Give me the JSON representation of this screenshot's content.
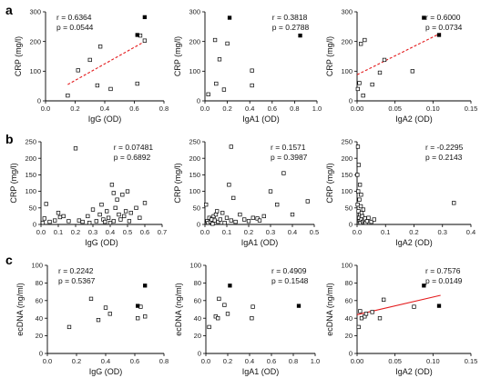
{
  "panels": [
    {
      "letter": "a"
    },
    {
      "letter": "b"
    },
    {
      "letter": "c"
    }
  ],
  "colors": {
    "fit_dashed": "#e41a1c",
    "fit_solid": "#e41a1c",
    "axis": "#000000"
  },
  "chart_data": [
    {
      "type": "scatter",
      "xlabel": "IgG (OD)",
      "ylabel": "CRP (mg/l)",
      "xlim": [
        0.0,
        0.8
      ],
      "ylim": [
        0,
        300
      ],
      "xticks": [
        "0.0",
        "0.2",
        "0.4",
        "0.6",
        "0.8"
      ],
      "xtick_values": [
        0,
        0.2,
        0.4,
        0.6,
        0.8
      ],
      "yticks": [
        "0",
        "100",
        "200",
        "300"
      ],
      "ytick_values": [
        0,
        100,
        200,
        300
      ],
      "stat_r": "r = 0.6364",
      "stat_p": "p = 0.0544",
      "stat_align": "left",
      "fit": {
        "style": "dashed",
        "x": [
          0.15,
          0.67
        ],
        "y": [
          55,
          200
        ]
      },
      "open_points": {
        "x": [
          0.15,
          0.22,
          0.3,
          0.35,
          0.37,
          0.44,
          0.62,
          0.64,
          0.67
        ],
        "y": [
          18,
          103,
          138,
          52,
          183,
          40,
          58,
          220,
          203
        ]
      },
      "filled_points": {
        "x": [
          0.62,
          0.67
        ],
        "y": [
          222,
          282
        ]
      }
    },
    {
      "type": "scatter",
      "xlabel": "IgA1 (OD)",
      "ylabel": "CRP (mg/l)",
      "xlim": [
        0.0,
        1.0
      ],
      "ylim": [
        0,
        300
      ],
      "xticks": [
        "0.0",
        "0.2",
        "0.4",
        "0.6",
        "0.8",
        "1.0"
      ],
      "xtick_values": [
        0,
        0.2,
        0.4,
        0.6,
        0.8,
        1.0
      ],
      "yticks": [
        "0",
        "100",
        "200",
        "300"
      ],
      "ytick_values": [
        0,
        100,
        200,
        300
      ],
      "stat_r": "r = 0.3818",
      "stat_p": "p = 0.2788",
      "stat_align": "right",
      "open_points": {
        "x": [
          0.03,
          0.09,
          0.1,
          0.13,
          0.17,
          0.2,
          0.42,
          0.42
        ],
        "y": [
          22,
          205,
          58,
          140,
          38,
          193,
          102,
          52
        ]
      },
      "filled_points": {
        "x": [
          0.22,
          0.85
        ],
        "y": [
          280,
          220
        ]
      }
    },
    {
      "type": "scatter",
      "xlabel": "IgA2 (OD)",
      "ylabel": "CRP (mg/l)",
      "xlim": [
        0.0,
        0.15
      ],
      "ylim": [
        0,
        300
      ],
      "xticks": [
        "0.00",
        "0.05",
        "0.10",
        "0.15"
      ],
      "xtick_values": [
        0,
        0.05,
        0.1,
        0.15
      ],
      "yticks": [
        "0",
        "100",
        "200",
        "300"
      ],
      "ytick_values": [
        0,
        100,
        200,
        300
      ],
      "stat_r": "r = 0.6000",
      "stat_p": "p = 0.0734",
      "stat_align": "right",
      "fit": {
        "style": "dashed",
        "x": [
          0.0,
          0.11
        ],
        "y": [
          88,
          228
        ]
      },
      "open_points": {
        "x": [
          0.001,
          0.003,
          0.005,
          0.008,
          0.01,
          0.02,
          0.03,
          0.036,
          0.073
        ],
        "y": [
          40,
          60,
          192,
          18,
          205,
          55,
          95,
          138,
          100
        ]
      },
      "filled_points": {
        "x": [
          0.088,
          0.108
        ],
        "y": [
          280,
          222
        ]
      }
    },
    {
      "type": "scatter",
      "xlabel": "IgG (OD)",
      "ylabel": "CRP (mg/l)",
      "xlim": [
        0.0,
        0.7
      ],
      "ylim": [
        0,
        250
      ],
      "xticks": [
        "0.0",
        "0.1",
        "0.2",
        "0.3",
        "0.4",
        "0.5",
        "0.6",
        "0.7"
      ],
      "xtick_values": [
        0,
        0.1,
        0.2,
        0.3,
        0.4,
        0.5,
        0.6,
        0.7
      ],
      "yticks": [
        "0",
        "50",
        "100",
        "150",
        "200",
        "250"
      ],
      "ytick_values": [
        0,
        50,
        100,
        150,
        200,
        250
      ],
      "stat_r": "r = 0.07481",
      "stat_p": "p = 0.6892",
      "stat_align": "right",
      "open_points": {
        "x": [
          0.01,
          0.02,
          0.03,
          0.05,
          0.08,
          0.1,
          0.11,
          0.13,
          0.16,
          0.2,
          0.22,
          0.24,
          0.27,
          0.28,
          0.3,
          0.32,
          0.34,
          0.35,
          0.36,
          0.37,
          0.38,
          0.39,
          0.4,
          0.41,
          0.42,
          0.42,
          0.43,
          0.44,
          0.45,
          0.46,
          0.47,
          0.48,
          0.49,
          0.5,
          0.51,
          0.52,
          0.55,
          0.57,
          0.6
        ],
        "y": [
          5,
          18,
          62,
          8,
          12,
          35,
          22,
          25,
          10,
          230,
          12,
          8,
          25,
          5,
          45,
          10,
          30,
          60,
          15,
          8,
          40,
          20,
          5,
          120,
          95,
          10,
          50,
          75,
          30,
          15,
          90,
          25,
          40,
          100,
          10,
          35,
          50,
          20,
          65
        ]
      },
      "filled_points": {
        "x": [],
        "y": []
      }
    },
    {
      "type": "scatter",
      "xlabel": "IgA1 (OD)",
      "ylabel": "CRP (mg/l)",
      "xlim": [
        0.0,
        0.5
      ],
      "ylim": [
        0,
        250
      ],
      "xticks": [
        "0.0",
        "0.1",
        "0.2",
        "0.3",
        "0.4",
        "0.5"
      ],
      "xtick_values": [
        0,
        0.1,
        0.2,
        0.3,
        0.4,
        0.5
      ],
      "yticks": [
        "0",
        "50",
        "100",
        "150",
        "200",
        "250"
      ],
      "ytick_values": [
        0,
        50,
        100,
        150,
        200,
        250
      ],
      "stat_r": "r = 0.1571",
      "stat_p": "p = 0.3987",
      "stat_align": "right",
      "open_points": {
        "x": [
          0.005,
          0.01,
          0.015,
          0.02,
          0.025,
          0.03,
          0.035,
          0.04,
          0.045,
          0.05,
          0.055,
          0.06,
          0.07,
          0.08,
          0.09,
          0.1,
          0.11,
          0.12,
          0.12,
          0.13,
          0.14,
          0.16,
          0.18,
          0.2,
          0.22,
          0.24,
          0.25,
          0.27,
          0.3,
          0.33,
          0.36,
          0.4,
          0.47
        ],
        "y": [
          60,
          10,
          5,
          20,
          8,
          15,
          2,
          25,
          12,
          30,
          40,
          8,
          15,
          35,
          5,
          20,
          120,
          235,
          12,
          80,
          8,
          30,
          15,
          10,
          20,
          18,
          12,
          25,
          100,
          60,
          155,
          30,
          70
        ]
      },
      "filled_points": {
        "x": [],
        "y": []
      }
    },
    {
      "type": "scatter",
      "xlabel": "IgA2 (OD)",
      "ylabel": "CRP (mg/l)",
      "xlim": [
        0.0,
        0.4
      ],
      "ylim": [
        0,
        250
      ],
      "xticks": [
        "0.0",
        "0.1",
        "0.2",
        "0.3",
        "0.4"
      ],
      "xtick_values": [
        0,
        0.1,
        0.2,
        0.3,
        0.4
      ],
      "yticks": [
        "0",
        "50",
        "100",
        "150",
        "200",
        "250"
      ],
      "ytick_values": [
        0,
        50,
        100,
        150,
        200,
        250
      ],
      "stat_r": "r = -0.2295",
      "stat_p": "p = 0.2143",
      "stat_align": "right",
      "open_points": {
        "x": [
          0.001,
          0.002,
          0.003,
          0.004,
          0.005,
          0.006,
          0.007,
          0.008,
          0.009,
          0.01,
          0.011,
          0.012,
          0.013,
          0.014,
          0.015,
          0.016,
          0.018,
          0.02,
          0.022,
          0.025,
          0.028,
          0.03,
          0.035,
          0.04,
          0.05,
          0.06,
          0.34
        ],
        "y": [
          150,
          60,
          235,
          100,
          40,
          180,
          20,
          75,
          10,
          120,
          30,
          5,
          55,
          90,
          15,
          35,
          25,
          8,
          45,
          12,
          18,
          5,
          10,
          20,
          8,
          15,
          65
        ]
      },
      "filled_points": {
        "x": [],
        "y": []
      }
    },
    {
      "type": "scatter",
      "xlabel": "IgG (OD)",
      "ylabel": "ecDNA (ng/ml)",
      "xlim": [
        0.0,
        0.8
      ],
      "ylim": [
        0,
        100
      ],
      "xticks": [
        "0.0",
        "0.2",
        "0.4",
        "0.6",
        "0.8"
      ],
      "xtick_values": [
        0,
        0.2,
        0.4,
        0.6,
        0.8
      ],
      "yticks": [
        "0",
        "20",
        "40",
        "60",
        "80",
        "100"
      ],
      "ytick_values": [
        0,
        20,
        40,
        60,
        80,
        100
      ],
      "stat_r": "r = 0.2242",
      "stat_p": "p = 0.5367",
      "stat_align": "left",
      "open_points": {
        "x": [
          0.15,
          0.3,
          0.35,
          0.4,
          0.43,
          0.62,
          0.64,
          0.67
        ],
        "y": [
          30,
          62,
          38,
          52,
          45,
          40,
          53,
          42
        ]
      },
      "filled_points": {
        "x": [
          0.62,
          0.67
        ],
        "y": [
          54,
          77
        ]
      }
    },
    {
      "type": "scatter",
      "xlabel": "IgA1 (OD)",
      "ylabel": "ecDNA (ng/ml)",
      "xlim": [
        0.0,
        1.0
      ],
      "ylim": [
        0,
        100
      ],
      "xticks": [
        "0.0",
        "0.2",
        "0.4",
        "0.6",
        "0.8",
        "1.0"
      ],
      "xtick_values": [
        0,
        0.2,
        0.4,
        0.6,
        0.8,
        1.0
      ],
      "yticks": [
        "0",
        "20",
        "40",
        "60",
        "80",
        "100"
      ],
      "ytick_values": [
        0,
        20,
        40,
        60,
        80,
        100
      ],
      "stat_r": "r = 0.4909",
      "stat_p": "p = 0.1548",
      "stat_align": "right",
      "open_points": {
        "x": [
          0.03,
          0.09,
          0.11,
          0.12,
          0.17,
          0.2,
          0.42,
          0.43
        ],
        "y": [
          30,
          42,
          40,
          62,
          55,
          45,
          40,
          53
        ]
      },
      "filled_points": {
        "x": [
          0.22,
          0.85
        ],
        "y": [
          77,
          54
        ]
      }
    },
    {
      "type": "scatter",
      "xlabel": "IgA2 (OD)",
      "ylabel": "ecDNA (ng/ml)",
      "xlim": [
        0.0,
        0.15
      ],
      "ylim": [
        0,
        100
      ],
      "xticks": [
        "0.00",
        "0.05",
        "0.10",
        "0.15"
      ],
      "xtick_values": [
        0,
        0.05,
        0.1,
        0.15
      ],
      "yticks": [
        "0",
        "20",
        "40",
        "60",
        "80",
        "100"
      ],
      "ytick_values": [
        0,
        20,
        40,
        60,
        80,
        100
      ],
      "stat_r": "r = 0.7576",
      "stat_p": "p = 0.0149",
      "stat_align": "right",
      "fit": {
        "style": "solid",
        "x": [
          0.0,
          0.11
        ],
        "y": [
          44,
          66
        ]
      },
      "open_points": {
        "x": [
          0.002,
          0.004,
          0.006,
          0.01,
          0.012,
          0.02,
          0.03,
          0.035,
          0.075
        ],
        "y": [
          30,
          48,
          40,
          42,
          45,
          47,
          40,
          61,
          53
        ]
      },
      "filled_points": {
        "x": [
          0.088,
          0.108
        ],
        "y": [
          77,
          54
        ]
      }
    }
  ]
}
